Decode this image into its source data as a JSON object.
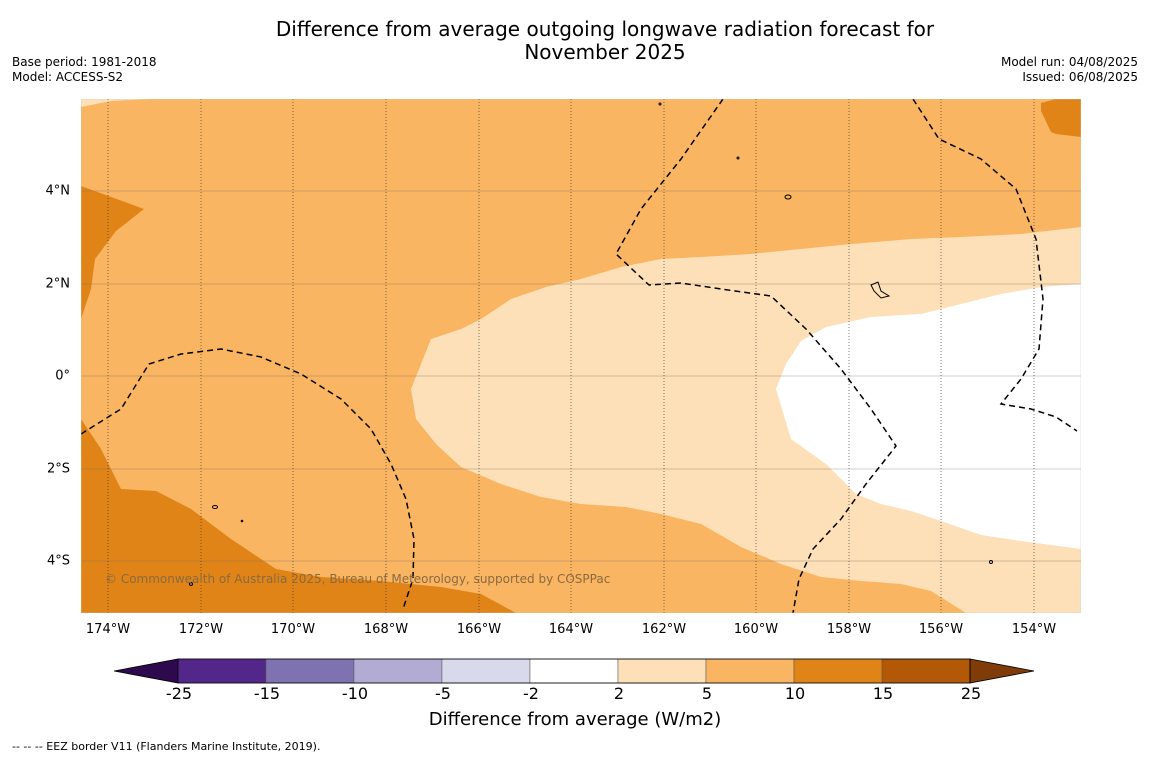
{
  "title": {
    "line1": "Difference from average outgoing longwave radiation forecast for",
    "line2": "November 2025"
  },
  "meta_left": {
    "base_period": "Base period: 1981-2018",
    "model": "Model: ACCESS-S2"
  },
  "meta_right": {
    "model_run": "Model run: 04/08/2025",
    "issued": "Issued: 06/08/2025"
  },
  "map": {
    "copyright": "© Commonwealth of Australia 2025, Bureau of Meteorology, supported by COSPPac",
    "lat_labels": [
      "4°N",
      "2°N",
      "0°",
      "2°S",
      "4°S"
    ],
    "lon_labels": [
      "174°W",
      "172°W",
      "170°W",
      "168°W",
      "166°W",
      "164°W",
      "162°W",
      "160°W",
      "158°W",
      "156°W",
      "154°W"
    ],
    "colors": {
      "band_10_15": "#e08417",
      "band_5_10": "#f9b562",
      "band_2_5": "#fde0b7",
      "band_m2_2": "#ffffff"
    }
  },
  "colorbar": {
    "ticks": [
      "-25",
      "-15",
      "-10",
      "-5",
      "-2",
      "2",
      "5",
      "10",
      "15",
      "25"
    ],
    "colors": [
      "#2d0a4e",
      "#532789",
      "#7f72b0",
      "#b2abd4",
      "#d9d9ec",
      "#ffffff",
      "#fde0b7",
      "#f9b562",
      "#e08417",
      "#b35807",
      "#7f3b08"
    ],
    "title": "Difference from average (W/m2)"
  },
  "footer": "--  --  -- EEZ border V11 (Flanders Marine Institute, 2019)."
}
